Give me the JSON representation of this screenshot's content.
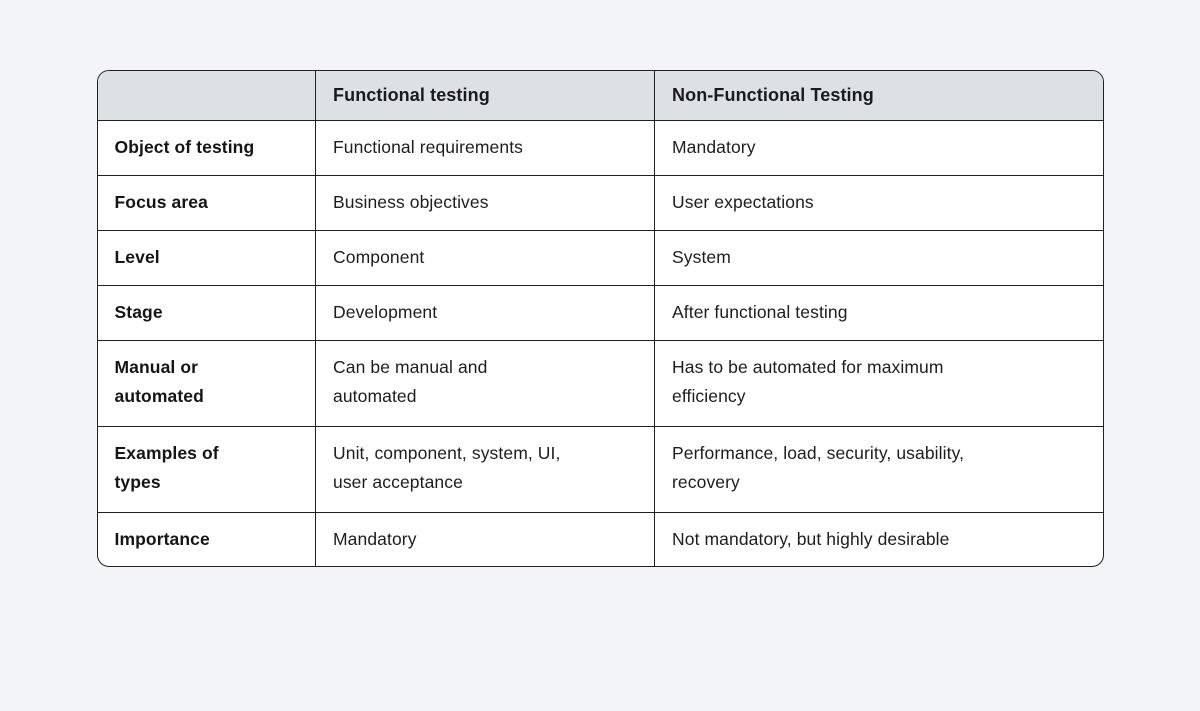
{
  "page": {
    "background": "#f2f4f7"
  },
  "colors": {
    "page_bg": "#f2f4f7",
    "header_bg": "#dee1e3",
    "cell_bg": "#ffffff",
    "border": "#212121",
    "text": "#1d1d1f"
  },
  "chart_data": {
    "type": "table",
    "title": "",
    "columns": [
      "",
      "Functional testing",
      "Non-Functional Testing"
    ],
    "rows": [
      [
        "Object of testing",
        "Functional requirements",
        "Mandatory"
      ],
      [
        "Focus area",
        "Business objectives",
        "User expectations"
      ],
      [
        "Level",
        "Component",
        "System"
      ],
      [
        "Stage",
        "Development",
        "After functional testing"
      ],
      [
        "Manual or\nautomated",
        "Can be manual and\nautomated",
        "Has to be automated for maximum\nefficiency"
      ],
      [
        "Examples of\ntypes",
        "Unit, component, system, UI,\nuser acceptance",
        "Performance, load, security, usability,\nrecovery"
      ],
      [
        "Importance",
        "Mandatory",
        "Not mandatory, but highly desirable"
      ]
    ]
  }
}
